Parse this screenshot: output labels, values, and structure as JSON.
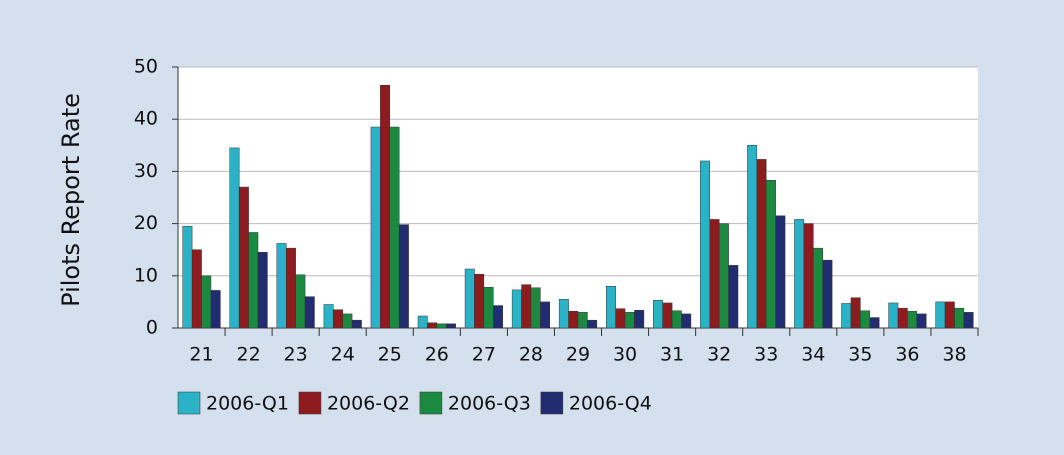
{
  "chart_data": {
    "type": "bar",
    "y_label": "Pilots Report Rate",
    "categories": [
      "21",
      "22",
      "23",
      "24",
      "25",
      "26",
      "27",
      "28",
      "29",
      "30",
      "31",
      "32",
      "33",
      "34",
      "35",
      "36",
      "38"
    ],
    "series": [
      {
        "name": "2006-Q1",
        "color": "#2ab3c6",
        "values": [
          19.5,
          34.5,
          16.2,
          4.5,
          38.5,
          2.3,
          11.3,
          7.3,
          5.5,
          8,
          5.3,
          32,
          35,
          20.8,
          4.7,
          4.8,
          5
        ]
      },
      {
        "name": "2006-Q2",
        "color": "#8e1c1f",
        "values": [
          15,
          27,
          15.3,
          3.5,
          46.5,
          1,
          10.3,
          8.3,
          3.2,
          3.7,
          4.8,
          20.8,
          32.3,
          20,
          5.8,
          3.8,
          5
        ]
      },
      {
        "name": "2006-Q3",
        "color": "#1b8a40",
        "values": [
          10,
          18.3,
          10.2,
          2.7,
          38.5,
          0.8,
          7.8,
          7.7,
          3,
          3,
          3.3,
          20,
          28.3,
          15.3,
          3.3,
          3.2,
          3.8
        ]
      },
      {
        "name": "2006-Q4",
        "color": "#222c70",
        "values": [
          7.2,
          14.5,
          6,
          1.5,
          19.8,
          0.8,
          4.3,
          5,
          1.5,
          3.4,
          2.7,
          12,
          21.5,
          13,
          2,
          2.7,
          3
        ]
      }
    ],
    "ylim": [
      0,
      50
    ],
    "yticks": [
      0,
      10,
      20,
      30,
      40,
      50
    ],
    "grid": true
  }
}
